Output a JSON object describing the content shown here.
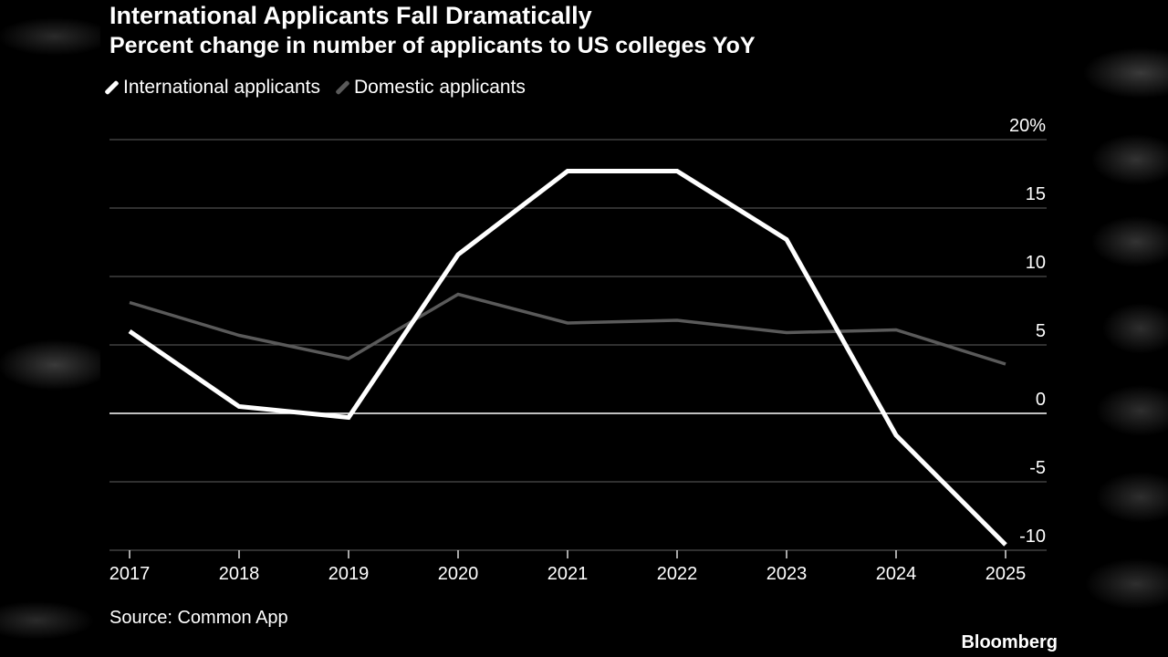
{
  "title": "International Applicants Fall Dramatically",
  "subtitle": "Percent change in number of applicants to US colleges YoY",
  "source": "Source: Common App",
  "brand": "Bloomberg",
  "colors": {
    "background": "#000000",
    "international": "#ffffff",
    "domestic": "#5a5a5a",
    "grid": "#4d4d4d",
    "zero_line": "#ffffff",
    "text": "#ffffff"
  },
  "chart_data": {
    "type": "line",
    "title": "International Applicants Fall Dramatically",
    "subtitle": "Percent change in number of applicants to US colleges YoY",
    "x": [
      "2017",
      "2018",
      "2019",
      "2020",
      "2021",
      "2022",
      "2023",
      "2024",
      "2025"
    ],
    "series": [
      {
        "name": "International applicants",
        "values": [
          6,
          0.5,
          -0.3,
          11.6,
          17.7,
          17.7,
          12.7,
          -1.6,
          -9.6
        ]
      },
      {
        "name": "Domestic applicants",
        "values": [
          8.1,
          5.7,
          4.0,
          8.7,
          6.6,
          6.8,
          5.9,
          6.1,
          3.6
        ]
      }
    ],
    "ylim": [
      -10,
      20
    ],
    "yticks": [
      {
        "value": 20,
        "label": "20%"
      },
      {
        "value": 15,
        "label": "15"
      },
      {
        "value": 10,
        "label": "10"
      },
      {
        "value": 5,
        "label": "5"
      },
      {
        "value": 0,
        "label": "0"
      },
      {
        "value": -5,
        "label": "-5"
      },
      {
        "value": -10,
        "label": "-10"
      }
    ],
    "legend_position": "top-left",
    "grid": true
  }
}
